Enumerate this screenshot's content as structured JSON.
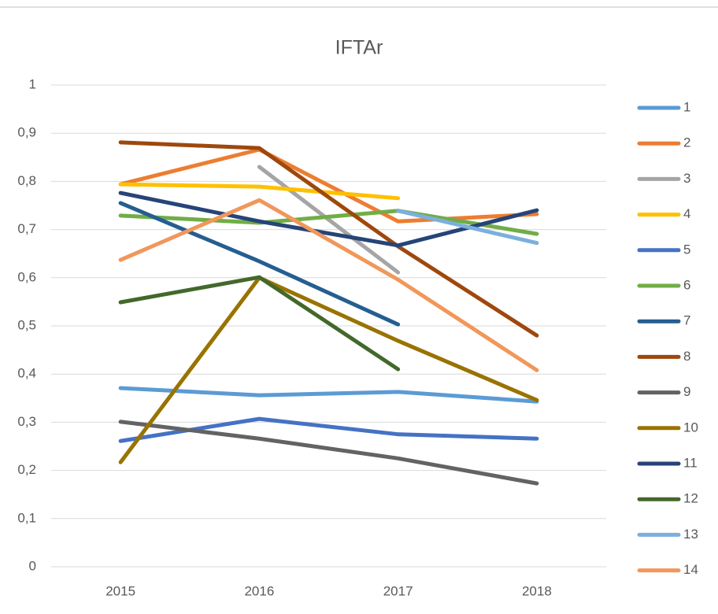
{
  "chart_data": {
    "type": "line",
    "title": "IFTAr",
    "categories": [
      "2015",
      "2016",
      "2017",
      "2018"
    ],
    "ylim": [
      0,
      1
    ],
    "yticks": [
      0,
      {
        "value": 0.1,
        "label": "0,1"
      },
      {
        "value": 0.2,
        "label": "0,2"
      },
      {
        "value": 0.3,
        "label": "0,3"
      },
      {
        "value": 0.4,
        "label": "0,4"
      },
      {
        "value": 0.5,
        "label": "0,5"
      },
      {
        "value": 0.6,
        "label": "0,6"
      },
      {
        "value": 0.7,
        "label": "0,7"
      },
      {
        "value": 0.8,
        "label": "0,8"
      },
      {
        "value": 0.9,
        "label": "0,9"
      },
      1
    ],
    "grid": true,
    "legend": "right",
    "series": [
      {
        "name": "1",
        "color": "#5b9bd5",
        "values": [
          0.371,
          0.356,
          0.363,
          0.343
        ]
      },
      {
        "name": "2",
        "color": "#ed7d31",
        "values": [
          0.794,
          0.866,
          0.717,
          0.732
        ]
      },
      {
        "name": "3",
        "color": "#a5a5a5",
        "values": [
          null,
          0.83,
          0.611,
          null
        ]
      },
      {
        "name": "4",
        "color": "#ffc000",
        "values": [
          0.794,
          0.789,
          0.765,
          null
        ]
      },
      {
        "name": "5",
        "color": "#4472c4",
        "values": [
          0.261,
          0.307,
          0.275,
          0.266
        ]
      },
      {
        "name": "6",
        "color": "#70ad47",
        "values": [
          0.729,
          0.714,
          0.739,
          0.691
        ]
      },
      {
        "name": "7",
        "color": "#255e91",
        "values": [
          0.755,
          0.634,
          0.503,
          null
        ]
      },
      {
        "name": "8",
        "color": "#9e480e",
        "values": [
          0.881,
          0.869,
          0.665,
          0.48
        ]
      },
      {
        "name": "9",
        "color": "#636363",
        "values": [
          0.301,
          0.266,
          0.225,
          0.173
        ]
      },
      {
        "name": "10",
        "color": "#997300",
        "values": [
          0.217,
          0.6,
          0.469,
          0.346
        ]
      },
      {
        "name": "11",
        "color": "#264478",
        "values": [
          0.776,
          0.717,
          0.667,
          0.74
        ]
      },
      {
        "name": "12",
        "color": "#43682b",
        "values": [
          0.549,
          0.601,
          0.41,
          null
        ]
      },
      {
        "name": "13",
        "color": "#7cafdd",
        "values": [
          null,
          null,
          0.739,
          0.672
        ]
      },
      {
        "name": "14",
        "color": "#f1975a",
        "values": [
          0.637,
          0.761,
          0.596,
          0.408
        ]
      }
    ]
  }
}
